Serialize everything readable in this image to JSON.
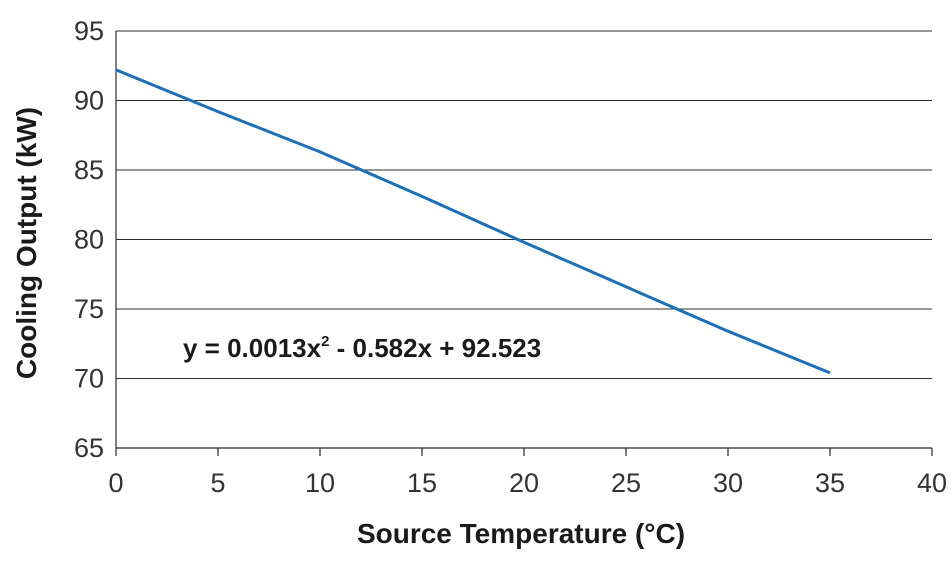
{
  "chart_data": {
    "type": "line",
    "xlabel": "Source Temperature (°C)",
    "ylabel": "Cooling Output (kW)",
    "xlim": [
      0,
      40
    ],
    "ylim": [
      65,
      95
    ],
    "xticks": [
      0,
      5,
      10,
      15,
      20,
      25,
      30,
      35,
      40
    ],
    "yticks": [
      65,
      70,
      75,
      80,
      85,
      90,
      95
    ],
    "grid": "horizontal",
    "series": [
      {
        "color": "#1f6fb5",
        "x": [
          0,
          5,
          10,
          15,
          20,
          25,
          30,
          35
        ],
        "y": [
          92.2,
          89.2,
          86.3,
          83.1,
          79.8,
          76.6,
          73.4,
          70.4
        ]
      }
    ],
    "annotation": {
      "prefix": "y = 0.0013x",
      "superscript": "2",
      "suffix": " - 0.582x + 92.523"
    }
  }
}
